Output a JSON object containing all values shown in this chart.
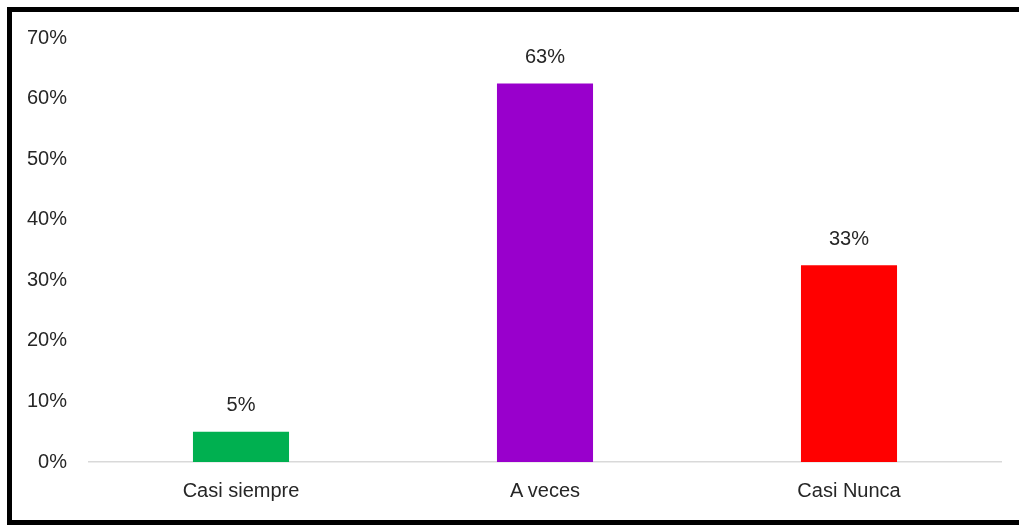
{
  "chart_data": {
    "type": "bar",
    "categories": [
      "Casi siempre",
      "A veces",
      "Casi Nunca"
    ],
    "values": [
      5,
      62.5,
      32.5
    ],
    "colors": [
      "#00b050",
      "#9900cc",
      "#ff0000"
    ],
    "value_labels": [
      "5%",
      "63%",
      "33%"
    ],
    "ylim": [
      0,
      70
    ],
    "yticks": [
      {
        "value": 0,
        "label": "0%"
      },
      {
        "value": 10,
        "label": "10%"
      },
      {
        "value": 20,
        "label": "20%"
      },
      {
        "value": 30,
        "label": "30%"
      },
      {
        "value": 40,
        "label": "40%"
      },
      {
        "value": 50,
        "label": "50%"
      },
      {
        "value": 60,
        "label": "60%"
      },
      {
        "value": 70,
        "label": "70%"
      }
    ],
    "grid": false
  }
}
